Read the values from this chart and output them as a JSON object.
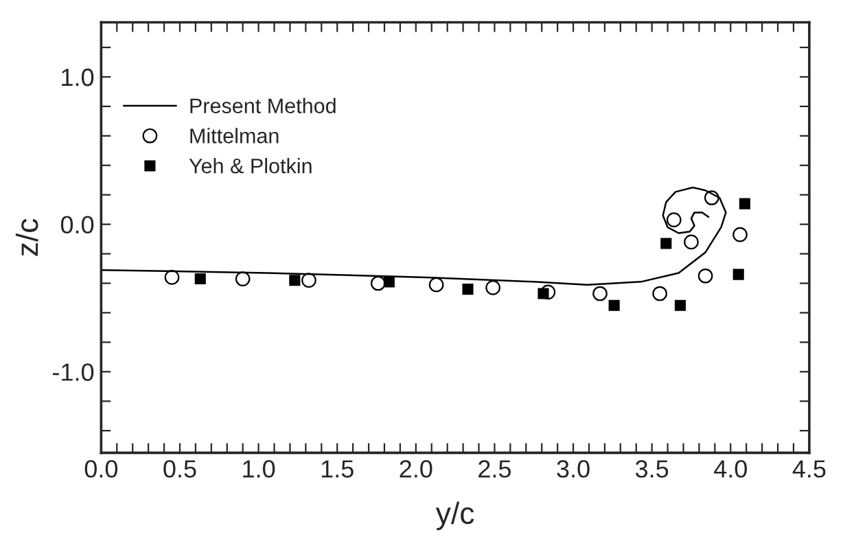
{
  "chart_data": {
    "type": "scatter",
    "xlabel": "y/c",
    "ylabel": "z/c",
    "xlim": [
      0.0,
      4.5
    ],
    "ylim": [
      -1.55,
      1.37
    ],
    "xticks": [
      {
        "value": 0.0,
        "label": "0.0"
      },
      {
        "value": 0.1,
        "label": null
      },
      {
        "value": 0.2,
        "label": null
      },
      {
        "value": 0.3,
        "label": null
      },
      {
        "value": 0.4,
        "label": null
      },
      {
        "value": 0.5,
        "label": "0.5"
      },
      {
        "value": 0.6,
        "label": null
      },
      {
        "value": 0.7,
        "label": null
      },
      {
        "value": 0.8,
        "label": null
      },
      {
        "value": 0.9,
        "label": null
      },
      {
        "value": 1.0,
        "label": "1.0"
      },
      {
        "value": 1.1,
        "label": null
      },
      {
        "value": 1.2,
        "label": null
      },
      {
        "value": 1.3,
        "label": null
      },
      {
        "value": 1.4,
        "label": null
      },
      {
        "value": 1.5,
        "label": "1.5"
      },
      {
        "value": 1.6,
        "label": null
      },
      {
        "value": 1.7,
        "label": null
      },
      {
        "value": 1.8,
        "label": null
      },
      {
        "value": 1.9,
        "label": null
      },
      {
        "value": 2.0,
        "label": "2.0"
      },
      {
        "value": 2.1,
        "label": null
      },
      {
        "value": 2.2,
        "label": null
      },
      {
        "value": 2.3,
        "label": null
      },
      {
        "value": 2.4,
        "label": null
      },
      {
        "value": 2.5,
        "label": "2.5"
      },
      {
        "value": 2.6,
        "label": null
      },
      {
        "value": 2.7,
        "label": null
      },
      {
        "value": 2.8,
        "label": null
      },
      {
        "value": 2.9,
        "label": null
      },
      {
        "value": 3.0,
        "label": "3.0"
      },
      {
        "value": 3.1,
        "label": null
      },
      {
        "value": 3.2,
        "label": null
      },
      {
        "value": 3.3,
        "label": null
      },
      {
        "value": 3.4,
        "label": null
      },
      {
        "value": 3.5,
        "label": "3.5"
      },
      {
        "value": 3.6,
        "label": null
      },
      {
        "value": 3.7,
        "label": null
      },
      {
        "value": 3.8,
        "label": null
      },
      {
        "value": 3.9,
        "label": null
      },
      {
        "value": 4.0,
        "label": "4.0"
      },
      {
        "value": 4.1,
        "label": null
      },
      {
        "value": 4.2,
        "label": null
      },
      {
        "value": 4.3,
        "label": null
      },
      {
        "value": 4.4,
        "label": null
      },
      {
        "value": 4.5,
        "label": "4.5"
      }
    ],
    "yticks": [
      {
        "value": -1.4,
        "label": null
      },
      {
        "value": -1.2,
        "label": null
      },
      {
        "value": -1.0,
        "label": "-1.0"
      },
      {
        "value": -0.8,
        "label": null
      },
      {
        "value": -0.6,
        "label": null
      },
      {
        "value": -0.4,
        "label": null
      },
      {
        "value": -0.2,
        "label": null
      },
      {
        "value": 0.0,
        "label": "0.0"
      },
      {
        "value": 0.2,
        "label": null
      },
      {
        "value": 0.4,
        "label": null
      },
      {
        "value": 0.6,
        "label": null
      },
      {
        "value": 0.8,
        "label": null
      },
      {
        "value": 1.0,
        "label": "1.0"
      },
      {
        "value": 1.2,
        "label": null
      }
    ],
    "grid": false,
    "legend": "top left",
    "series": [
      {
        "name": "Present Method",
        "type": "line",
        "color": "#000000",
        "marker": "none",
        "line_style": "solid",
        "x": [
          0.0,
          1.05,
          2.07,
          2.75,
          3.09,
          3.43,
          3.67,
          3.84,
          3.94,
          3.97,
          3.93,
          3.84,
          3.76,
          3.65,
          3.59,
          3.57,
          3.6,
          3.67,
          3.74,
          3.77,
          3.75,
          3.77,
          3.82,
          3.86
        ],
        "values": [
          -0.31,
          -0.33,
          -0.36,
          -0.39,
          -0.41,
          -0.39,
          -0.33,
          -0.19,
          -0.02,
          0.08,
          0.18,
          0.23,
          0.25,
          0.22,
          0.15,
          0.06,
          -0.02,
          -0.06,
          -0.05,
          -0.01,
          0.04,
          0.08,
          0.08,
          0.05
        ]
      },
      {
        "name": "Mittelman",
        "color": "#000000",
        "marker": "circle",
        "x": [
          0.45,
          0.9,
          1.32,
          1.76,
          2.13,
          2.49,
          2.84,
          3.17,
          3.55,
          3.84,
          4.06,
          3.88,
          3.64,
          3.75
        ],
        "values": [
          -0.36,
          -0.37,
          -0.38,
          -0.4,
          -0.41,
          -0.43,
          -0.46,
          -0.47,
          -0.47,
          -0.35,
          -0.07,
          0.18,
          0.03,
          -0.12
        ]
      },
      {
        "name": "Yeh & Plotkin",
        "color": "#000000",
        "marker": "square",
        "x": [
          0.63,
          1.23,
          1.83,
          2.33,
          2.81,
          3.26,
          3.59,
          3.68,
          4.05,
          4.09
        ],
        "values": [
          -0.37,
          -0.38,
          -0.39,
          -0.44,
          -0.47,
          -0.55,
          -0.13,
          -0.55,
          -0.34,
          0.14
        ]
      }
    ]
  }
}
